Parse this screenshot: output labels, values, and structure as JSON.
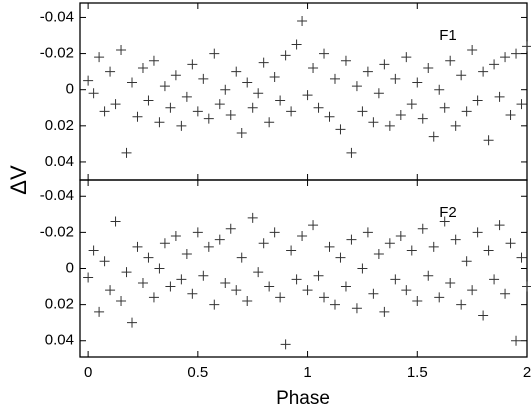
{
  "chart_data": [
    {
      "type": "scatter",
      "annotation": "F1",
      "ylabel": "ΔV",
      "marker": "plus",
      "color": "#333333",
      "y_inverted": true,
      "xlim": [
        -0.037,
        2.0
      ],
      "xticks": [
        0,
        0.5,
        1,
        1.5,
        2
      ],
      "ylim": [
        -0.048,
        0.05
      ],
      "yticks": [
        -0.04,
        -0.02,
        0,
        0.02,
        0.04
      ],
      "x": [
        0,
        0.025,
        0.05,
        0.075,
        0.1,
        0.125,
        0.15,
        0.175,
        0.2,
        0.225,
        0.25,
        0.275,
        0.3,
        0.325,
        0.35,
        0.375,
        0.4,
        0.425,
        0.45,
        0.475,
        0.5,
        0.525,
        0.55,
        0.575,
        0.6,
        0.625,
        0.65,
        0.675,
        0.7,
        0.725,
        0.75,
        0.775,
        0.8,
        0.825,
        0.85,
        0.875,
        0.9,
        0.925,
        0.95,
        0.975,
        1,
        1.025,
        1.05,
        1.075,
        1.1,
        1.125,
        1.15,
        1.175,
        1.2,
        1.225,
        1.25,
        1.275,
        1.3,
        1.325,
        1.35,
        1.375,
        1.4,
        1.425,
        1.45,
        1.475,
        1.5,
        1.525,
        1.55,
        1.575,
        1.6,
        1.625,
        1.65,
        1.675,
        1.7,
        1.725,
        1.75,
        1.775,
        1.8,
        1.825,
        1.85,
        1.875,
        1.9,
        1.925,
        1.95,
        1.975,
        2
      ],
      "values": [
        -0.005,
        0.002,
        -0.018,
        0.012,
        -0.01,
        0.008,
        -0.022,
        0.035,
        -0.004,
        0.015,
        -0.012,
        0.006,
        -0.016,
        0.018,
        -0.002,
        0.01,
        -0.008,
        0.02,
        0.004,
        -0.014,
        0.012,
        -0.006,
        0.016,
        -0.02,
        0.008,
        0.0,
        0.014,
        -0.01,
        0.024,
        -0.004,
        0.01,
        0.002,
        -0.015,
        0.018,
        -0.007,
        0.006,
        -0.019,
        0.012,
        -0.025,
        -0.038,
        0.003,
        -0.012,
        0.01,
        -0.02,
        0.015,
        -0.006,
        0.022,
        -0.016,
        0.035,
        -0.002,
        0.012,
        -0.01,
        0.018,
        0.002,
        -0.014,
        0.02,
        -0.006,
        0.014,
        -0.018,
        0.008,
        -0.004,
        0.016,
        -0.012,
        0.026,
        0.0,
        0.01,
        -0.016,
        0.02,
        -0.008,
        0.012,
        -0.022,
        0.006,
        -0.01,
        0.028,
        -0.014,
        0.004,
        -0.018,
        0.014,
        -0.02,
        0.008,
        -0.024
      ]
    },
    {
      "type": "scatter",
      "annotation": "F2",
      "xlabel": "Phase",
      "marker": "plus",
      "color": "#333333",
      "y_inverted": true,
      "xlim": [
        -0.037,
        2.0
      ],
      "xticks": [
        0,
        0.5,
        1,
        1.5,
        2
      ],
      "ylim": [
        -0.049,
        0.049
      ],
      "yticks": [
        -0.04,
        -0.02,
        0,
        0.02,
        0.04
      ],
      "x": [
        0,
        0.025,
        0.05,
        0.075,
        0.1,
        0.125,
        0.15,
        0.175,
        0.2,
        0.225,
        0.25,
        0.275,
        0.3,
        0.325,
        0.35,
        0.375,
        0.4,
        0.425,
        0.45,
        0.475,
        0.5,
        0.525,
        0.55,
        0.575,
        0.6,
        0.625,
        0.65,
        0.675,
        0.7,
        0.725,
        0.75,
        0.775,
        0.8,
        0.825,
        0.85,
        0.875,
        0.9,
        0.925,
        0.95,
        0.975,
        1,
        1.025,
        1.05,
        1.075,
        1.1,
        1.125,
        1.15,
        1.175,
        1.2,
        1.225,
        1.25,
        1.275,
        1.3,
        1.325,
        1.35,
        1.375,
        1.4,
        1.425,
        1.45,
        1.475,
        1.5,
        1.525,
        1.55,
        1.575,
        1.6,
        1.625,
        1.65,
        1.675,
        1.7,
        1.725,
        1.75,
        1.775,
        1.8,
        1.825,
        1.85,
        1.875,
        1.9,
        1.925,
        1.95,
        1.975,
        2
      ],
      "values": [
        0.005,
        -0.01,
        0.024,
        -0.004,
        0.012,
        -0.026,
        0.018,
        0.002,
        0.03,
        -0.012,
        0.008,
        -0.006,
        0.016,
        0.0,
        -0.014,
        0.01,
        -0.018,
        0.006,
        -0.008,
        0.014,
        -0.02,
        0.004,
        -0.012,
        0.02,
        -0.016,
        0.008,
        -0.022,
        0.012,
        -0.006,
        0.018,
        -0.028,
        0.002,
        -0.014,
        0.01,
        -0.02,
        0.016,
        0.042,
        -0.01,
        0.006,
        -0.018,
        0.012,
        -0.024,
        0.004,
        0.016,
        -0.012,
        0.02,
        -0.006,
        0.01,
        -0.016,
        0.022,
        0.0,
        -0.02,
        0.014,
        -0.008,
        0.024,
        -0.014,
        0.006,
        -0.018,
        0.012,
        -0.01,
        0.018,
        -0.022,
        0.004,
        -0.012,
        0.016,
        -0.026,
        0.008,
        -0.016,
        0.02,
        -0.004,
        0.012,
        -0.02,
        0.026,
        -0.01,
        0.006,
        -0.024,
        0.014,
        -0.014,
        0.04,
        -0.006,
        0.01
      ]
    }
  ]
}
